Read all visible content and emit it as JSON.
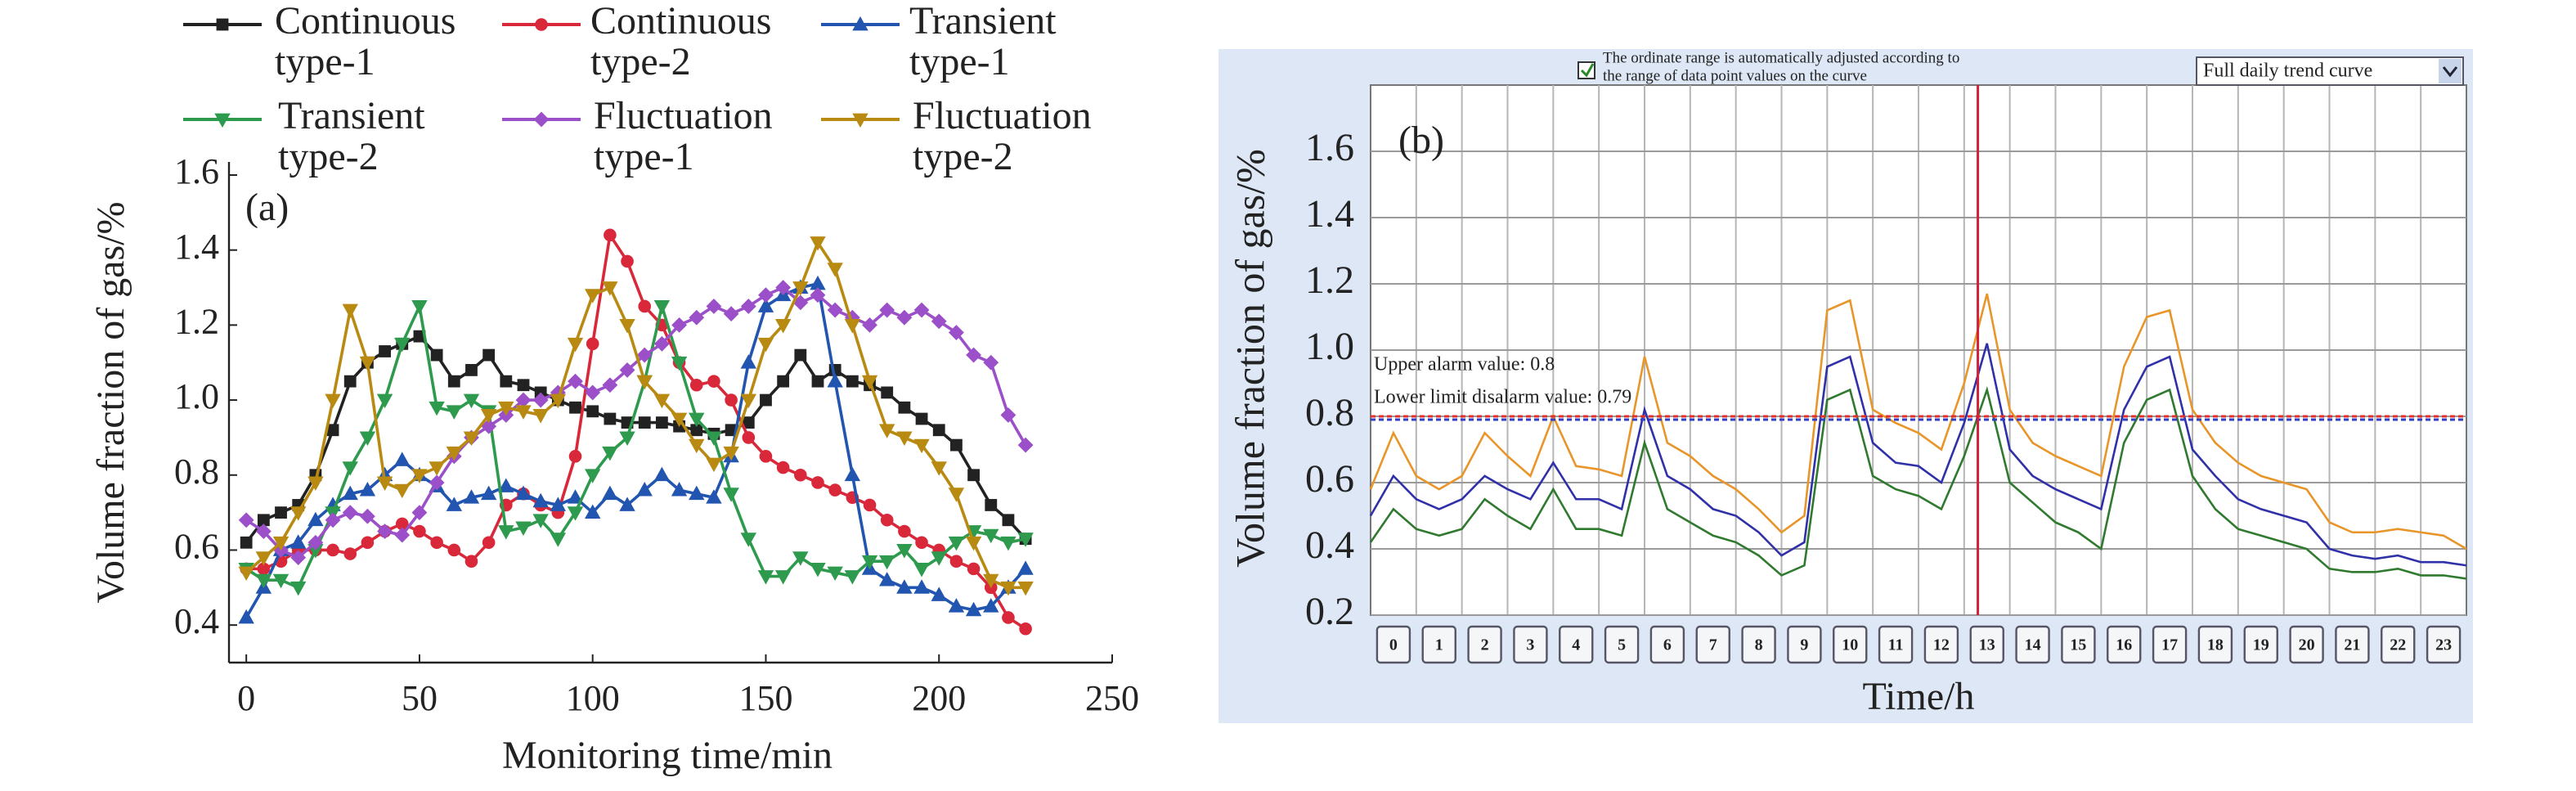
{
  "chart_data": [
    {
      "type": "line",
      "panel_label": "(a)",
      "xlabel": "Monitoring time/min",
      "ylabel": "Volume fraction of gas/%",
      "x": [
        0,
        5,
        10,
        15,
        20,
        25,
        30,
        35,
        40,
        45,
        50,
        55,
        60,
        65,
        70,
        75,
        80,
        85,
        90,
        95,
        100,
        105,
        110,
        115,
        120,
        125,
        130,
        135,
        140,
        145,
        150,
        155,
        160,
        165,
        170,
        175,
        180,
        185,
        190,
        195,
        200,
        205,
        210,
        215,
        220,
        225
      ],
      "xlim": [
        -5,
        250
      ],
      "xticks": [
        0,
        50,
        100,
        150,
        200,
        250
      ],
      "ylim": [
        0.3,
        1.6
      ],
      "yticks": [
        0.4,
        0.6,
        0.8,
        {
          "value": 1,
          "label": "1.0"
        },
        1.2,
        1.4,
        1.6
      ],
      "series": [
        {
          "name": "Continuous type-1",
          "color": "#222222",
          "marker": "square",
          "values": [
            0.62,
            0.68,
            0.7,
            0.72,
            0.8,
            0.92,
            1.05,
            1.1,
            1.13,
            1.15,
            1.17,
            1.12,
            1.05,
            1.08,
            1.12,
            1.05,
            1.04,
            1.02,
            1.0,
            0.98,
            0.97,
            0.95,
            0.94,
            0.94,
            0.94,
            0.93,
            0.92,
            0.91,
            0.92,
            0.94,
            1.0,
            1.05,
            1.12,
            1.05,
            1.08,
            1.05,
            1.04,
            1.02,
            0.98,
            0.95,
            0.92,
            0.88,
            0.8,
            0.72,
            0.68,
            0.63
          ]
        },
        {
          "name": "Continuous type-2",
          "color": "#d8283a",
          "marker": "circle",
          "values": [
            0.55,
            0.55,
            0.57,
            0.6,
            0.6,
            0.6,
            0.59,
            0.62,
            0.65,
            0.67,
            0.65,
            0.62,
            0.6,
            0.57,
            0.62,
            0.72,
            0.75,
            0.72,
            0.7,
            0.85,
            1.15,
            1.44,
            1.37,
            1.25,
            1.2,
            1.1,
            1.04,
            1.05,
            1.0,
            0.9,
            0.85,
            0.82,
            0.8,
            0.78,
            0.76,
            0.74,
            0.72,
            0.68,
            0.65,
            0.62,
            0.6,
            0.57,
            0.55,
            0.5,
            0.42,
            0.39
          ]
        },
        {
          "name": "Transient type-1",
          "color": "#2255b0",
          "marker": "triangle-up",
          "values": [
            0.42,
            0.5,
            0.6,
            0.62,
            0.68,
            0.72,
            0.75,
            0.76,
            0.8,
            0.84,
            0.8,
            0.77,
            0.72,
            0.74,
            0.75,
            0.77,
            0.75,
            0.73,
            0.72,
            0.74,
            0.7,
            0.75,
            0.72,
            0.76,
            0.8,
            0.76,
            0.75,
            0.74,
            0.85,
            1.1,
            1.25,
            1.28,
            1.3,
            1.31,
            1.05,
            0.8,
            0.55,
            0.52,
            0.5,
            0.5,
            0.48,
            0.45,
            0.44,
            0.45,
            0.5,
            0.55
          ]
        },
        {
          "name": "Transient type-2",
          "color": "#2e9a4e",
          "marker": "triangle-down",
          "values": [
            0.55,
            0.52,
            0.52,
            0.5,
            0.6,
            0.7,
            0.82,
            0.9,
            1.0,
            1.15,
            1.25,
            0.98,
            0.97,
            1.0,
            0.97,
            0.65,
            0.66,
            0.68,
            0.63,
            0.7,
            0.8,
            0.86,
            0.9,
            1.05,
            1.25,
            1.1,
            0.95,
            0.9,
            0.75,
            0.63,
            0.53,
            0.53,
            0.58,
            0.55,
            0.54,
            0.53,
            0.57,
            0.57,
            0.6,
            0.55,
            0.58,
            0.62,
            0.65,
            0.64,
            0.62,
            0.63
          ]
        },
        {
          "name": "Fluctuation type-1",
          "color": "#9b4fc8",
          "marker": "diamond",
          "values": [
            0.68,
            0.65,
            0.6,
            0.58,
            0.62,
            0.68,
            0.7,
            0.69,
            0.65,
            0.64,
            0.7,
            0.78,
            0.85,
            0.9,
            0.93,
            0.96,
            1.0,
            1.0,
            1.02,
            1.05,
            1.02,
            1.04,
            1.08,
            1.12,
            1.15,
            1.2,
            1.22,
            1.25,
            1.23,
            1.25,
            1.28,
            1.3,
            1.26,
            1.28,
            1.24,
            1.22,
            1.2,
            1.24,
            1.22,
            1.24,
            1.21,
            1.18,
            1.12,
            1.1,
            0.96,
            0.88
          ]
        },
        {
          "name": "Fluctuation type-2",
          "color": "#b88a12",
          "marker": "triangle-down",
          "values": [
            0.54,
            0.58,
            0.62,
            0.7,
            0.78,
            1.0,
            1.24,
            1.1,
            0.78,
            0.76,
            0.8,
            0.82,
            0.86,
            0.9,
            0.96,
            0.98,
            0.97,
            0.96,
            1.0,
            1.15,
            1.28,
            1.3,
            1.2,
            1.05,
            1.0,
            0.95,
            0.88,
            0.83,
            0.86,
            1.0,
            1.15,
            1.2,
            1.3,
            1.42,
            1.35,
            1.2,
            1.05,
            0.92,
            0.9,
            0.88,
            0.82,
            0.75,
            0.62,
            0.52,
            0.5,
            0.5
          ]
        }
      ]
    },
    {
      "type": "trend-screen",
      "panel_label": "(b)",
      "xlabel": "Time/h",
      "ylabel": "Volume fraction of gas/%",
      "checkbox_text": [
        "The ordinate range is automatically adjusted according to",
        "the range of data point values on the curve"
      ],
      "dropdown": "Full daily trend curve",
      "hour_buttons": [
        0,
        1,
        2,
        3,
        4,
        5,
        6,
        7,
        8,
        9,
        10,
        11,
        12,
        13,
        14,
        15,
        16,
        17,
        18,
        19,
        20,
        21,
        22,
        23
      ],
      "x": [
        0,
        0.5,
        1,
        1.5,
        2,
        2.5,
        3,
        3.5,
        4,
        4.5,
        5,
        5.5,
        6,
        6.5,
        7,
        7.5,
        8,
        8.5,
        9,
        9.5,
        10,
        10.5,
        11,
        11.5,
        12,
        12.5,
        13,
        13.5,
        14,
        14.5,
        15,
        15.5,
        16,
        16.5,
        17,
        17.5,
        18,
        18.5,
        19,
        19.5,
        20,
        20.5,
        21,
        21.5,
        22,
        22.5,
        23,
        23.5,
        24
      ],
      "xlim": [
        0,
        24
      ],
      "ylim": [
        0.2,
        1.8
      ],
      "yticks": [
        0.2,
        0.4,
        0.6,
        0.8,
        {
          "value": 1,
          "label": "1.0"
        },
        1.2,
        1.4,
        1.6
      ],
      "series": [
        {
          "color": "#e8952a",
          "values": [
            0.58,
            0.75,
            0.62,
            0.58,
            0.62,
            0.75,
            0.68,
            0.62,
            0.8,
            0.65,
            0.64,
            0.62,
            0.98,
            0.72,
            0.68,
            0.62,
            0.58,
            0.52,
            0.45,
            0.5,
            1.12,
            1.15,
            0.82,
            0.78,
            0.75,
            0.7,
            0.9,
            1.17,
            0.82,
            0.72,
            0.68,
            0.65,
            0.62,
            0.95,
            1.1,
            1.12,
            0.82,
            0.72,
            0.66,
            0.62,
            0.6,
            0.58,
            0.48,
            0.45,
            0.45,
            0.46,
            0.45,
            0.44,
            0.4
          ]
        },
        {
          "color": "#3030a8",
          "values": [
            0.5,
            0.62,
            0.55,
            0.52,
            0.55,
            0.62,
            0.58,
            0.55,
            0.66,
            0.55,
            0.55,
            0.52,
            0.82,
            0.62,
            0.58,
            0.52,
            0.5,
            0.45,
            0.38,
            0.42,
            0.95,
            0.98,
            0.72,
            0.66,
            0.65,
            0.6,
            0.78,
            1.02,
            0.7,
            0.62,
            0.58,
            0.55,
            0.52,
            0.82,
            0.95,
            0.98,
            0.7,
            0.62,
            0.55,
            0.52,
            0.5,
            0.48,
            0.4,
            0.38,
            0.37,
            0.38,
            0.36,
            0.36,
            0.35
          ]
        },
        {
          "color": "#2f7a2f",
          "values": [
            0.42,
            0.52,
            0.46,
            0.44,
            0.46,
            0.55,
            0.5,
            0.46,
            0.58,
            0.46,
            0.46,
            0.44,
            0.72,
            0.52,
            0.48,
            0.44,
            0.42,
            0.38,
            0.32,
            0.35,
            0.85,
            0.88,
            0.62,
            0.58,
            0.56,
            0.52,
            0.68,
            0.88,
            0.6,
            0.54,
            0.48,
            0.45,
            0.4,
            0.72,
            0.85,
            0.88,
            0.62,
            0.52,
            0.46,
            0.44,
            0.42,
            0.4,
            0.34,
            0.33,
            0.33,
            0.34,
            0.32,
            0.32,
            0.31
          ]
        }
      ],
      "alarm_lines": [
        {
          "text": "Upper alarm value: 0.8",
          "value": 0.8,
          "color": "#e03030"
        },
        {
          "text": "Lower limit disalarm value: 0.79",
          "value": 0.79,
          "color": "#3040c0"
        }
      ],
      "cursor_x": 13.3,
      "cursor_color": "#d0203a"
    }
  ]
}
